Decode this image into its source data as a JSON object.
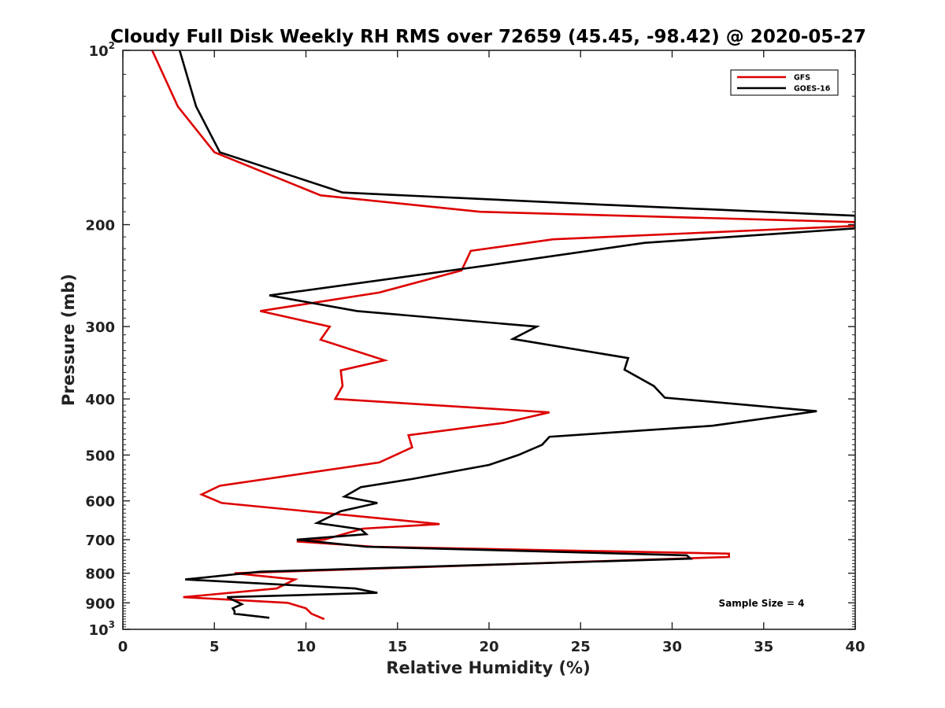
{
  "chart_data": {
    "type": "line",
    "title": "Cloudy Full Disk Weekly RH RMS over 72659 (45.45, -98.42) @ 2020-05-27",
    "xlabel": "Relative Humidity (%)",
    "ylabel": "Pressure (mb)",
    "xlim": [
      0,
      40
    ],
    "ylim": [
      100,
      1000
    ],
    "y_scale": "log",
    "y_reversed": true,
    "x_ticks": [
      "0",
      "5",
      "10",
      "15",
      "20",
      "25",
      "30",
      "35",
      "40"
    ],
    "y_ticks": [
      {
        "value": 100,
        "base": "10",
        "exp": "2"
      },
      {
        "value": 200,
        "label": "200"
      },
      {
        "value": 300,
        "label": "300"
      },
      {
        "value": 400,
        "label": "400"
      },
      {
        "value": 500,
        "label": "500"
      },
      {
        "value": 600,
        "label": "600"
      },
      {
        "value": 700,
        "label": "700"
      },
      {
        "value": 800,
        "label": "800"
      },
      {
        "value": 900,
        "label": "900"
      },
      {
        "value": 1000,
        "base": "10",
        "exp": "3"
      }
    ],
    "grid": false,
    "legend": "top-right",
    "annotation": "Sample Size = 4",
    "series": [
      {
        "name": "GFS",
        "color": "#dd0000",
        "points": [
          [
            1.6,
            100
          ],
          [
            3.0,
            125
          ],
          [
            5.0,
            150
          ],
          [
            10.8,
            178
          ],
          [
            19.5,
            190
          ],
          [
            40,
            198
          ],
          [
            40,
            201
          ],
          [
            23.5,
            212
          ],
          [
            19.0,
            222
          ],
          [
            18.5,
            240
          ],
          [
            14.0,
            262
          ],
          [
            7.5,
            282
          ],
          [
            11.3,
            300
          ],
          [
            10.8,
            316
          ],
          [
            14.3,
            343
          ],
          [
            11.9,
            357
          ],
          [
            12.0,
            380
          ],
          [
            11.6,
            400
          ],
          [
            23.3,
            422
          ],
          [
            20.8,
            440
          ],
          [
            15.6,
            462
          ],
          [
            15.8,
            485
          ],
          [
            14.0,
            515
          ],
          [
            5.3,
            565
          ],
          [
            4.3,
            585
          ],
          [
            5.4,
            605
          ],
          [
            17.3,
            658
          ],
          [
            13.1,
            670
          ],
          [
            11.0,
            700
          ],
          [
            9.5,
            705
          ],
          [
            13.7,
            720
          ],
          [
            33.1,
            740
          ],
          [
            33.1,
            750
          ],
          [
            6.1,
            800
          ],
          [
            9.4,
            820
          ],
          [
            8.4,
            850
          ],
          [
            3.3,
            880
          ],
          [
            9.0,
            900
          ],
          [
            10.0,
            920
          ],
          [
            10.3,
            940
          ],
          [
            11.0,
            960
          ]
        ]
      },
      {
        "name": "GOES-16",
        "color": "#000000",
        "points": [
          [
            3.1,
            100
          ],
          [
            4.0,
            125
          ],
          [
            5.3,
            150
          ],
          [
            12.0,
            176
          ],
          [
            26.6,
            185
          ],
          [
            40,
            193
          ],
          [
            40,
            203
          ],
          [
            28.5,
            215
          ],
          [
            20.0,
            235
          ],
          [
            8.0,
            265
          ],
          [
            12.8,
            282
          ],
          [
            22.6,
            300
          ],
          [
            21.3,
            315
          ],
          [
            27.6,
            340
          ],
          [
            27.4,
            356
          ],
          [
            29.0,
            380
          ],
          [
            29.6,
            398
          ],
          [
            37.9,
            420
          ],
          [
            32.2,
            445
          ],
          [
            23.3,
            465
          ],
          [
            22.9,
            480
          ],
          [
            21.6,
            500
          ],
          [
            20.0,
            520
          ],
          [
            15.8,
            550
          ],
          [
            13.0,
            568
          ],
          [
            12.1,
            590
          ],
          [
            13.9,
            605
          ],
          [
            11.9,
            625
          ],
          [
            10.6,
            655
          ],
          [
            13.0,
            672
          ],
          [
            13.3,
            685
          ],
          [
            9.5,
            700
          ],
          [
            13.3,
            720
          ],
          [
            30.8,
            745
          ],
          [
            31.0,
            755
          ],
          [
            7.5,
            795
          ],
          [
            3.4,
            820
          ],
          [
            12.7,
            850
          ],
          [
            13.9,
            865
          ],
          [
            5.7,
            880
          ],
          [
            6.5,
            905
          ],
          [
            6.0,
            920
          ],
          [
            6.1,
            930
          ],
          [
            6.1,
            940
          ],
          [
            8.0,
            955
          ]
        ]
      }
    ]
  }
}
